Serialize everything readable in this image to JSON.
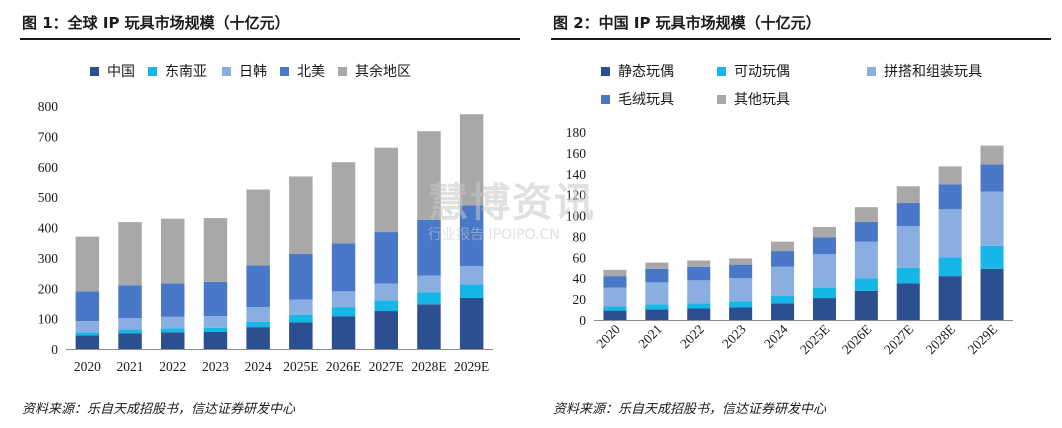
{
  "panels": [
    {
      "title": "图 1：全球 IP 玩具市场规模（十亿元）",
      "source": "资料来源：乐自天成招股书，信达证券研发中心"
    },
    {
      "title": "图 2：中国 IP 玩具市场规模（十亿元）",
      "source": "资料来源：乐自天成招股书，信达证券研发中心"
    }
  ],
  "watermark": {
    "main": "慧博资讯",
    "sub": "行业报告 IPOIPO.CN"
  },
  "chart_data": [
    {
      "type": "bar",
      "stacked": true,
      "categories": [
        "2020",
        "2021",
        "2022",
        "2023",
        "2024",
        "2025E",
        "2026E",
        "2027E",
        "2028E",
        "2029E"
      ],
      "ylim": [
        0,
        800
      ],
      "yticks": [
        0,
        100,
        200,
        300,
        400,
        500,
        600,
        700,
        800
      ],
      "legend_position": "top",
      "grid": false,
      "series": [
        {
          "name": "中国",
          "color": "#2c4f8f",
          "values": [
            45,
            52,
            55,
            56,
            72,
            88,
            108,
            125,
            147,
            168
          ]
        },
        {
          "name": "东南亚",
          "color": "#17b6e8",
          "values": [
            10,
            12,
            13,
            14,
            18,
            25,
            30,
            35,
            40,
            45
          ]
        },
        {
          "name": "日韩",
          "color": "#8aaee0",
          "values": [
            37,
            38,
            38,
            38,
            48,
            50,
            52,
            55,
            55,
            60
          ]
        },
        {
          "name": "北美",
          "color": "#4a78c8",
          "values": [
            98,
            108,
            110,
            113,
            137,
            150,
            158,
            170,
            183,
            200
          ]
        },
        {
          "name": "其余地区",
          "color": "#a8a8a8",
          "values": [
            180,
            208,
            213,
            210,
            250,
            255,
            267,
            278,
            292,
            300
          ]
        }
      ]
    },
    {
      "type": "bar",
      "stacked": true,
      "categories": [
        "2020",
        "2021",
        "2022",
        "2023",
        "2024",
        "2025E",
        "2026E",
        "2027E",
        "2028E",
        "2029E"
      ],
      "ylim": [
        0,
        180
      ],
      "yticks": [
        0,
        20,
        40,
        60,
        80,
        100,
        120,
        140,
        160,
        180
      ],
      "legend_position": "top",
      "grid": false,
      "series": [
        {
          "name": "静态玩偶",
          "color": "#2c4f8f",
          "values": [
            9,
            10,
            11,
            12,
            16,
            21,
            28,
            35,
            42,
            49
          ]
        },
        {
          "name": "可动玩偶",
          "color": "#17b6e8",
          "values": [
            4,
            5,
            5,
            6,
            7,
            10,
            12,
            15,
            18,
            22
          ]
        },
        {
          "name": "拼搭和组装玩具",
          "color": "#8aaee0",
          "values": [
            18,
            21,
            22,
            22,
            28,
            32,
            35,
            40,
            46,
            52
          ]
        },
        {
          "name": "毛绒玩具",
          "color": "#4a78c8",
          "values": [
            11,
            13,
            13,
            13,
            15,
            16,
            19,
            22,
            24,
            26
          ]
        },
        {
          "name": "其他玩具",
          "color": "#a8a8a8",
          "values": [
            6,
            6,
            6,
            6,
            9,
            10,
            14,
            16,
            17,
            18
          ]
        }
      ]
    }
  ]
}
